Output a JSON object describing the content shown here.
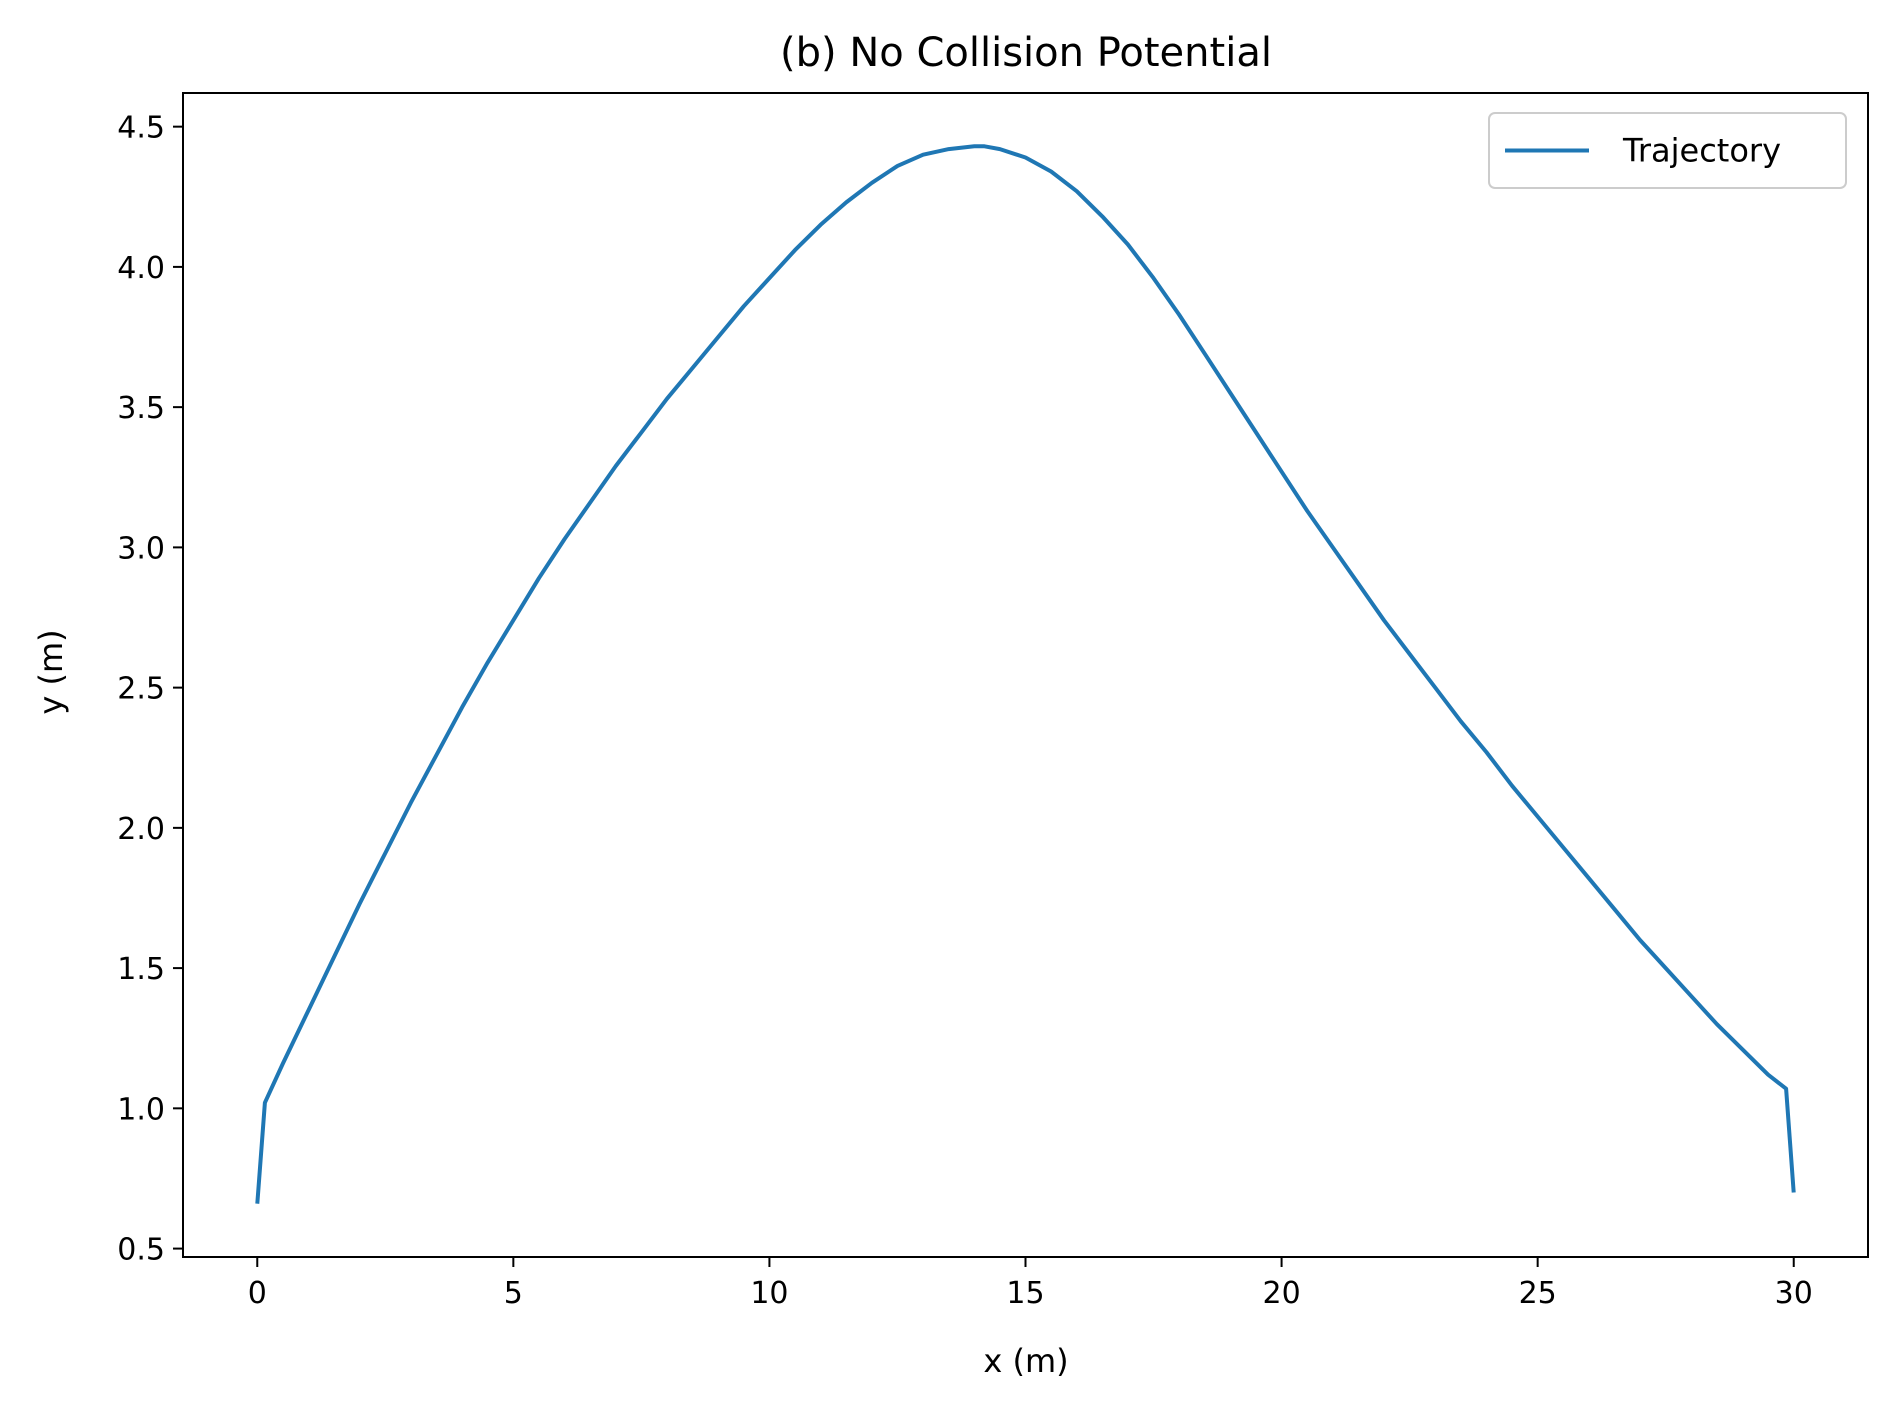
{
  "chart_data": {
    "type": "line",
    "title": "(b) No Collision Potential",
    "xlabel": "x (m)",
    "ylabel": "y (m)",
    "xlim": [
      -1.45,
      31.45
    ],
    "ylim": [
      0.47,
      4.62
    ],
    "xticks": [
      0,
      5,
      10,
      15,
      20,
      25,
      30
    ],
    "yticks": [
      0.5,
      1.0,
      1.5,
      2.0,
      2.5,
      3.0,
      3.5,
      4.0,
      4.5
    ],
    "xtick_labels": [
      "0",
      "5",
      "10",
      "15",
      "20",
      "25",
      "30"
    ],
    "ytick_labels": [
      "0.5",
      "1.0",
      "1.5",
      "2.0",
      "2.5",
      "3.0",
      "3.5",
      "4.0",
      "4.5"
    ],
    "grid": false,
    "legend_position": "top-right",
    "series": [
      {
        "name": "Trajectory",
        "color": "#1f77b4",
        "x": [
          0.0,
          0.15,
          0.5,
          1.0,
          1.5,
          2.0,
          2.5,
          3.0,
          3.5,
          4.0,
          4.5,
          5.0,
          5.5,
          6.0,
          6.5,
          7.0,
          7.5,
          8.0,
          8.5,
          9.0,
          9.5,
          10.0,
          10.5,
          11.0,
          11.5,
          12.0,
          12.5,
          13.0,
          13.5,
          14.0,
          14.2,
          14.5,
          15.0,
          15.5,
          16.0,
          16.5,
          17.0,
          17.5,
          18.0,
          18.5,
          19.0,
          19.5,
          20.0,
          20.5,
          21.0,
          21.5,
          22.0,
          22.5,
          23.0,
          23.5,
          24.0,
          24.5,
          25.0,
          25.5,
          26.0,
          26.5,
          27.0,
          27.5,
          28.0,
          28.5,
          29.0,
          29.5,
          29.85,
          30.0
        ],
        "y": [
          0.66,
          1.02,
          1.16,
          1.35,
          1.54,
          1.73,
          1.91,
          2.09,
          2.26,
          2.43,
          2.59,
          2.74,
          2.89,
          3.03,
          3.16,
          3.29,
          3.41,
          3.53,
          3.64,
          3.75,
          3.86,
          3.96,
          4.06,
          4.15,
          4.23,
          4.3,
          4.36,
          4.4,
          4.42,
          4.43,
          4.43,
          4.42,
          4.39,
          4.34,
          4.27,
          4.18,
          4.08,
          3.96,
          3.83,
          3.69,
          3.55,
          3.41,
          3.27,
          3.13,
          3.0,
          2.87,
          2.74,
          2.62,
          2.5,
          2.38,
          2.27,
          2.15,
          2.04,
          1.93,
          1.82,
          1.71,
          1.6,
          1.5,
          1.4,
          1.3,
          1.21,
          1.12,
          1.07,
          0.7
        ]
      }
    ]
  }
}
